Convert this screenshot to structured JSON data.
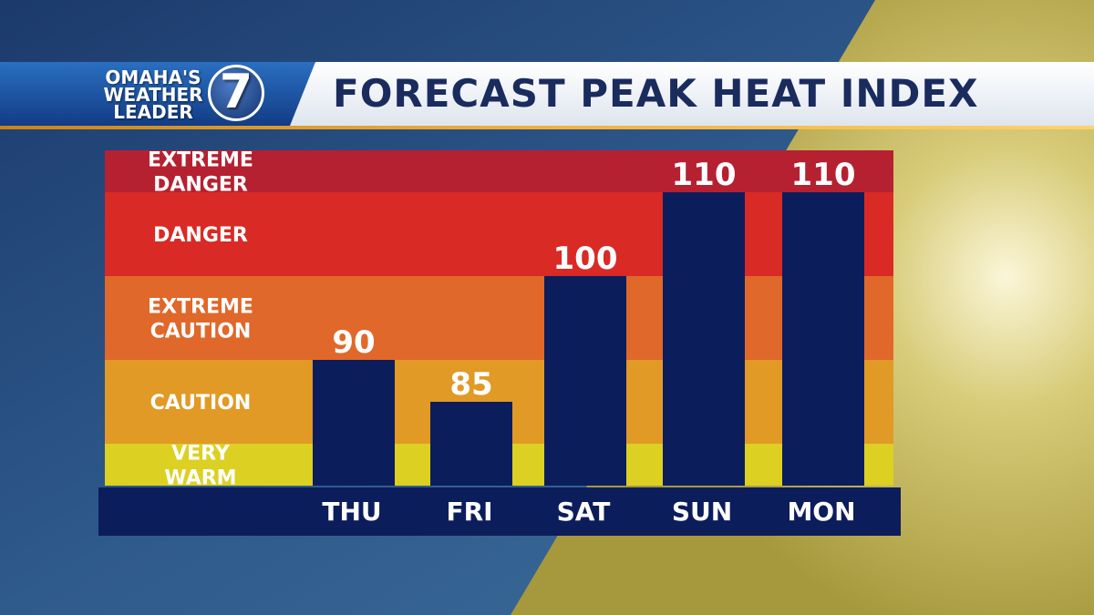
{
  "header": {
    "logo_lines": [
      "OMAHA'S",
      "WEATHER",
      "LEADER"
    ],
    "logo_number": "7",
    "title": "FORECAST PEAK HEAT INDEX"
  },
  "chart_data": {
    "type": "bar",
    "title": "FORECAST PEAK HEAT INDEX",
    "categories": [
      "THU",
      "FRI",
      "SAT",
      "SUN",
      "MON"
    ],
    "values": [
      90,
      85,
      100,
      110,
      110
    ],
    "data_labels": [
      "90",
      "85",
      "100",
      "110",
      "110"
    ],
    "ylim": [
      75,
      115
    ],
    "bar_color": "#0c1d5c",
    "zones": [
      {
        "label": [
          "VERY",
          "WARM"
        ],
        "from": 75,
        "to": 80,
        "color": "#dcd023"
      },
      {
        "label": [
          "CAUTION"
        ],
        "from": 80,
        "to": 90,
        "color": "#e19a26"
      },
      {
        "label": [
          "EXTREME",
          "CAUTION"
        ],
        "from": 90,
        "to": 100,
        "color": "#e0682a"
      },
      {
        "label": [
          "DANGER"
        ],
        "from": 100,
        "to": 110,
        "color": "#d92a26"
      },
      {
        "label": [
          "EXTREME",
          "DANGER"
        ],
        "from": 110,
        "to": 115,
        "color": "#b52131"
      }
    ]
  }
}
